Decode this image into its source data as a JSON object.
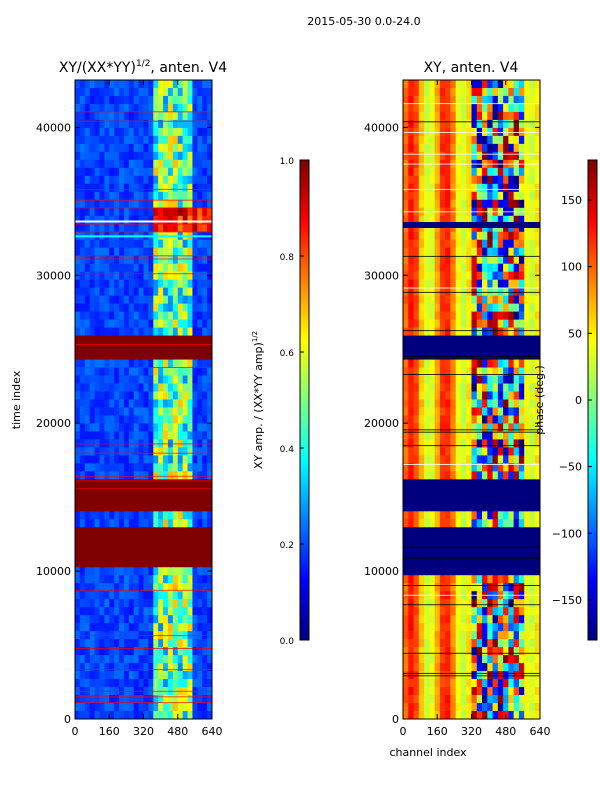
{
  "suptitle": "2015-05-30 0.0-24.0",
  "colors": {
    "jet": [
      "#00007f",
      "#0000ff",
      "#007fff",
      "#00ffff",
      "#7fff7f",
      "#ffff00",
      "#ff7f00",
      "#ff0000",
      "#7f0000"
    ],
    "axis": "#000000",
    "background": "#ffffff"
  },
  "chart_data": [
    {
      "type": "heatmap",
      "id": "amp",
      "title_main": "XY/(XX*YY)",
      "title_exp": "1/2",
      "title_tail": ", anten. V4",
      "xlabel": "",
      "ylabel": "time index",
      "xlim": [
        0,
        640
      ],
      "ylim": [
        0,
        43200
      ],
      "xticks": [
        0,
        160,
        320,
        480,
        640
      ],
      "yticks": [
        0,
        10000,
        20000,
        30000,
        40000
      ],
      "saturated_bands": [
        {
          "y0": 24200,
          "y1": 25800,
          "value": 1.0
        },
        {
          "y0": 14000,
          "y1": 16200,
          "value": 1.0
        },
        {
          "y0": 10300,
          "y1": 13000,
          "value": 1.0
        }
      ],
      "high_amplitude_band": {
        "x0": 360,
        "x1": 640,
        "y0": 33000,
        "y1": 34400,
        "value": 0.85
      },
      "colorbar": {
        "label_main": "XY amp. / (XX*YY amp)",
        "label_exp": "1/2",
        "range": [
          0.0,
          1.0
        ],
        "ticks": [
          "0.0",
          "0.2",
          "0.4",
          "0.6",
          "0.8",
          "1.0"
        ]
      }
    },
    {
      "type": "heatmap",
      "id": "phase",
      "title": "XY, anten. V4",
      "xlabel": "channel index",
      "ylabel": "",
      "xlim": [
        0,
        640
      ],
      "ylim": [
        0,
        43200
      ],
      "xticks": [
        0,
        160,
        320,
        480,
        640
      ],
      "yticks": [
        0,
        10000,
        20000,
        30000,
        40000
      ],
      "flagged_bands": [
        {
          "y0": 24200,
          "y1": 25800
        },
        {
          "y0": 14000,
          "y1": 16200
        },
        {
          "y0": 9500,
          "y1": 13000
        }
      ],
      "colorbar": {
        "label": "phase (deg.)",
        "range": [
          -180,
          180
        ],
        "ticks": [
          "150",
          "100",
          "50",
          "0",
          "−50",
          "−100",
          "−150"
        ],
        "tick_values": [
          150,
          100,
          50,
          0,
          -50,
          -100,
          -150
        ]
      }
    }
  ]
}
